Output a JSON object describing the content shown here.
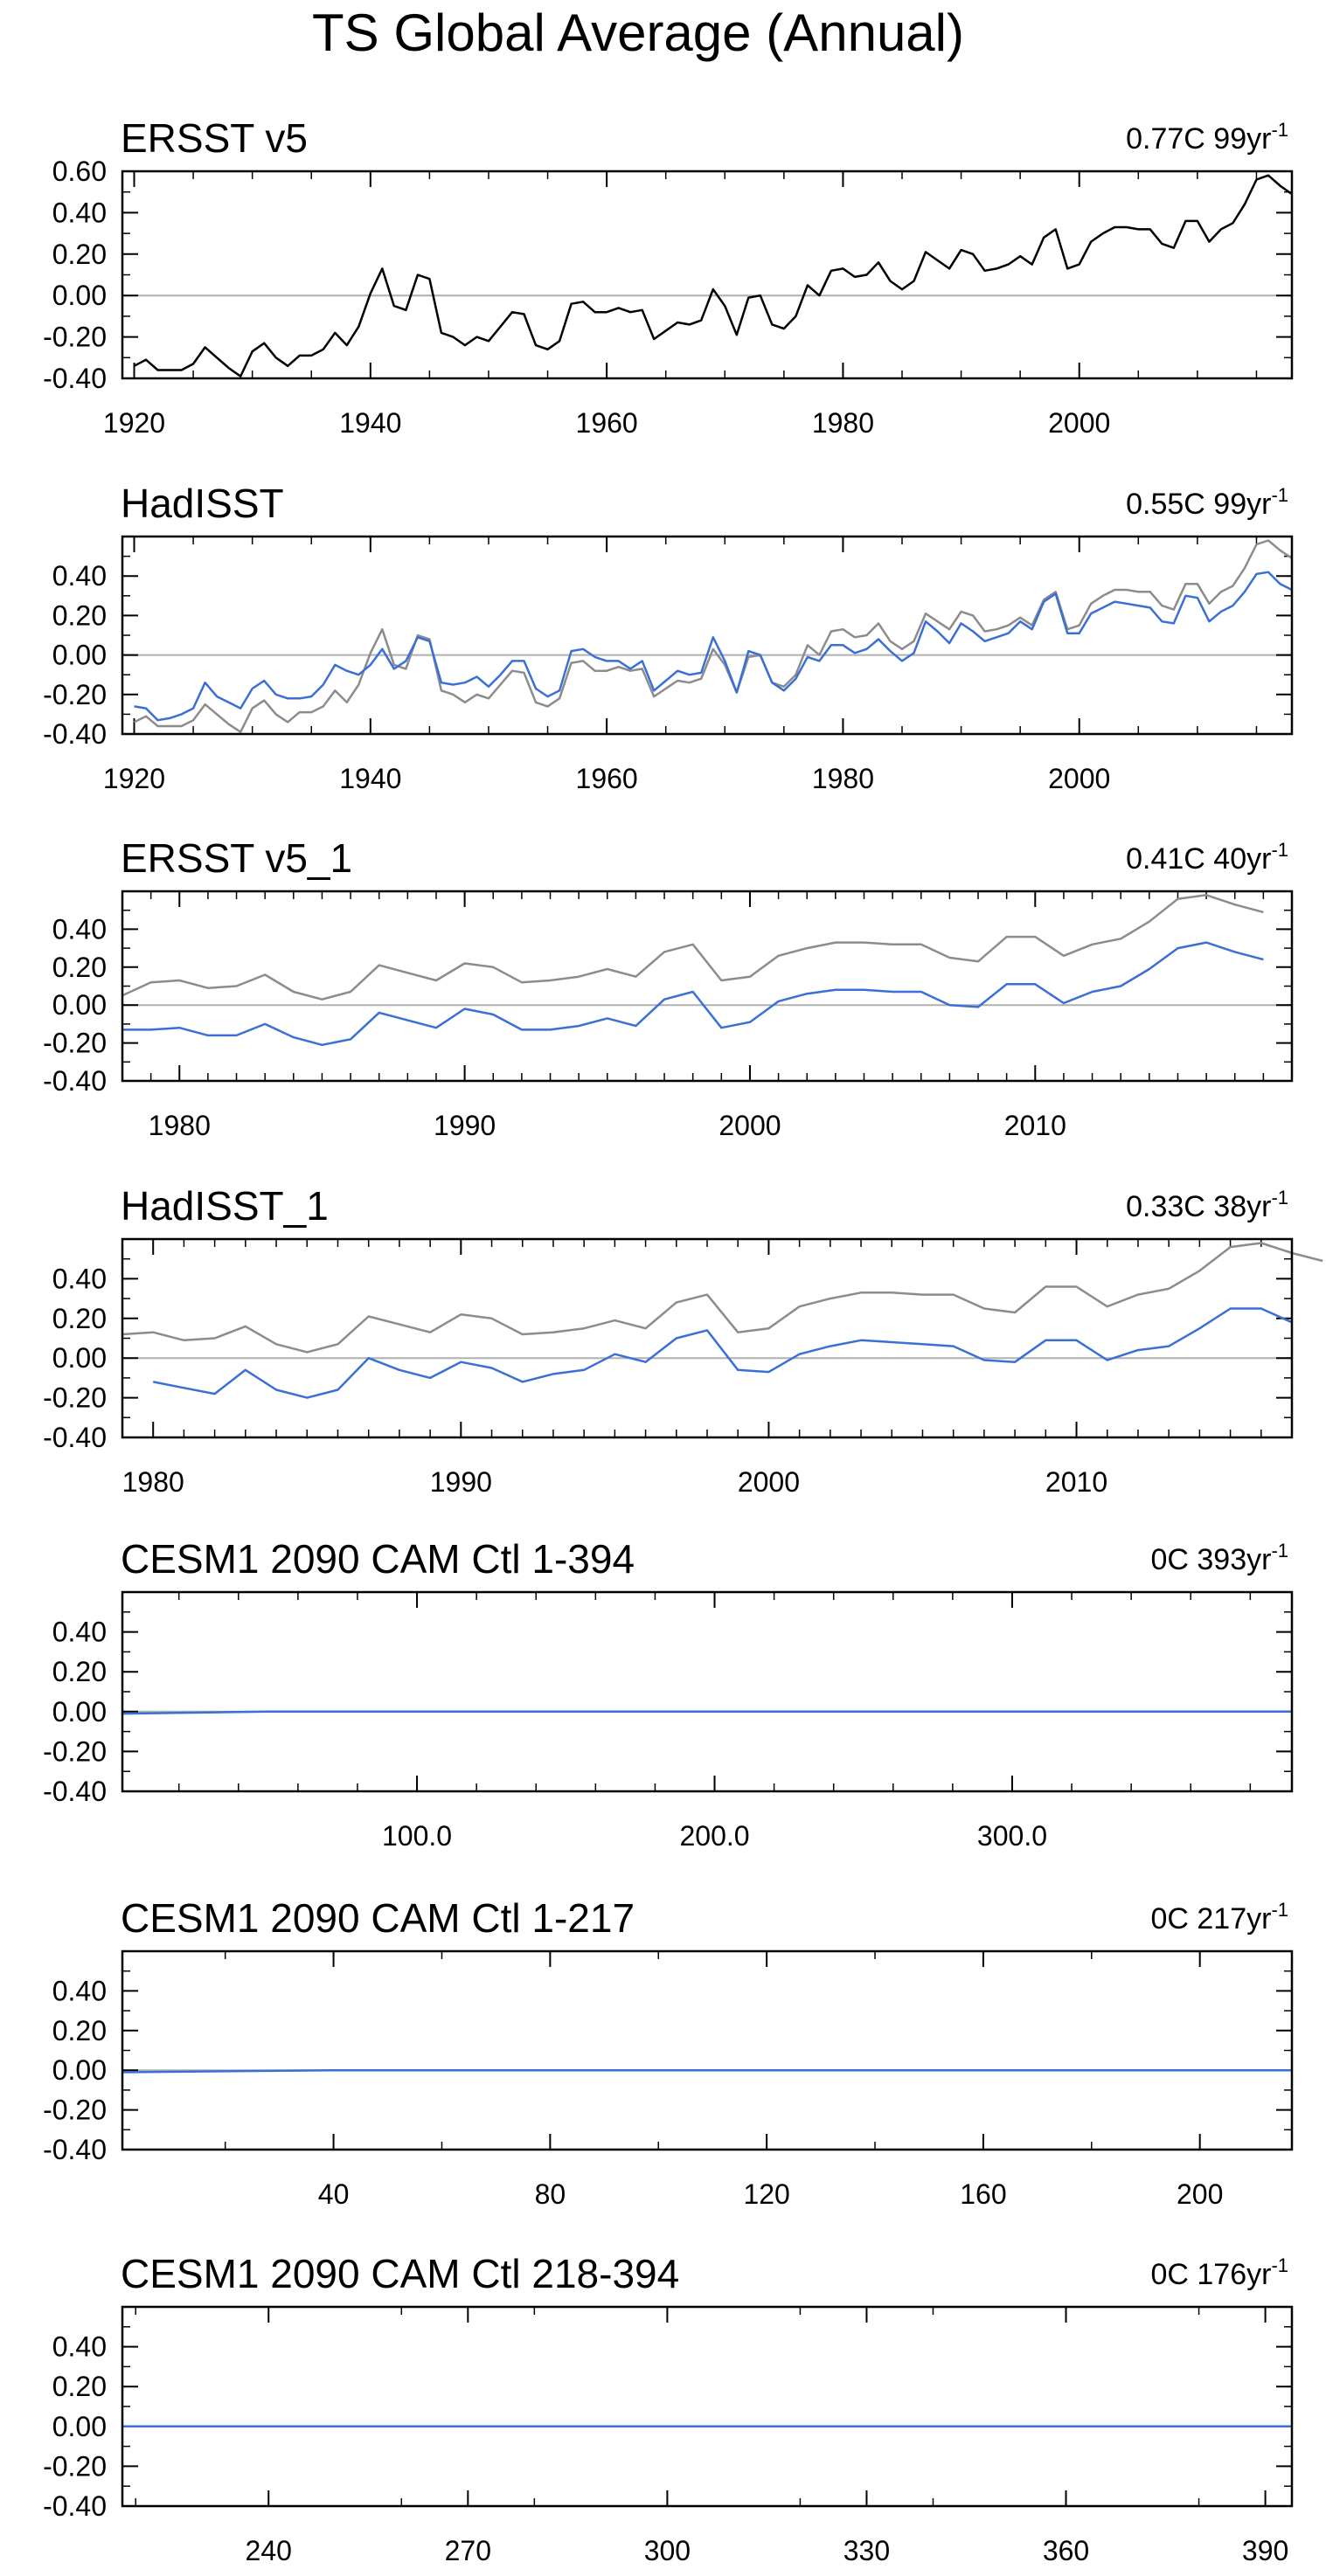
{
  "title": "TS Global Average (Annual)",
  "colors": {
    "obs": "#000000",
    "obs_ref": "#8c8c8c",
    "model": "#3a6fd6",
    "zero": "#b0b0b0",
    "axis": "#000000"
  },
  "chart_data": [
    {
      "type": "line",
      "title": "ERSST v5",
      "stat_value": "0.77C 99yr",
      "stat_sup": "-1",
      "xlim": [
        1919,
        2018
      ],
      "ylim": [
        -0.4,
        0.6
      ],
      "xticks": [
        1920,
        1940,
        1960,
        1980,
        2000
      ],
      "xtick_labels": [
        "1920",
        "1940",
        "1960",
        "1980",
        "2000"
      ],
      "yticks": [
        -0.4,
        -0.2,
        0,
        0.2,
        0.4,
        0.6
      ],
      "ytick_labels": [
        "-0.40",
        "-0.20",
        "0.00",
        "0.20",
        "0.40",
        "0.60"
      ],
      "grid": false,
      "series": [
        {
          "color_role": "obs",
          "x0": 1920,
          "values": [
            -0.34,
            -0.31,
            -0.36,
            -0.36,
            -0.36,
            -0.33,
            -0.25,
            -0.3,
            -0.35,
            -0.39,
            -0.27,
            -0.23,
            -0.3,
            -0.34,
            -0.29,
            -0.29,
            -0.26,
            -0.18,
            -0.24,
            -0.15,
            0.01,
            0.13,
            -0.05,
            -0.07,
            0.1,
            0.08,
            -0.18,
            -0.2,
            -0.24,
            -0.2,
            -0.22,
            -0.15,
            -0.08,
            -0.09,
            -0.24,
            -0.26,
            -0.22,
            -0.04,
            -0.03,
            -0.08,
            -0.08,
            -0.06,
            -0.08,
            -0.07,
            -0.21,
            -0.17,
            -0.13,
            -0.14,
            -0.12,
            0.03,
            -0.05,
            -0.19,
            -0.01,
            0.0,
            -0.14,
            -0.16,
            -0.1,
            0.05,
            0.0,
            0.12,
            0.13,
            0.09,
            0.1,
            0.16,
            0.07,
            0.03,
            0.07,
            0.21,
            0.17,
            0.13,
            0.22,
            0.2,
            0.12,
            0.13,
            0.15,
            0.19,
            0.15,
            0.28,
            0.32,
            0.13,
            0.15,
            0.26,
            0.3,
            0.33,
            0.33,
            0.32,
            0.32,
            0.25,
            0.23,
            0.36,
            0.36,
            0.26,
            0.32,
            0.35,
            0.44,
            0.56,
            0.58,
            0.53,
            0.49
          ]
        }
      ]
    },
    {
      "type": "line",
      "title": "HadISST",
      "stat_value": "0.55C 99yr",
      "stat_sup": "-1",
      "xlim": [
        1919,
        2018
      ],
      "ylim": [
        -0.4,
        0.6
      ],
      "xticks": [
        1920,
        1940,
        1960,
        1980,
        2000
      ],
      "xtick_labels": [
        "1920",
        "1940",
        "1960",
        "1980",
        "2000"
      ],
      "yticks": [
        -0.4,
        -0.2,
        0,
        0.2,
        0.4
      ],
      "ytick_labels": [
        "-0.40",
        "-0.20",
        "0.00",
        "0.20",
        "0.40"
      ],
      "grid": false,
      "series": [
        {
          "color_role": "obs_ref",
          "x0": 1920,
          "values": [
            -0.34,
            -0.31,
            -0.36,
            -0.36,
            -0.36,
            -0.33,
            -0.25,
            -0.3,
            -0.35,
            -0.39,
            -0.27,
            -0.23,
            -0.3,
            -0.34,
            -0.29,
            -0.29,
            -0.26,
            -0.18,
            -0.24,
            -0.15,
            0.01,
            0.13,
            -0.05,
            -0.07,
            0.1,
            0.08,
            -0.18,
            -0.2,
            -0.24,
            -0.2,
            -0.22,
            -0.15,
            -0.08,
            -0.09,
            -0.24,
            -0.26,
            -0.22,
            -0.04,
            -0.03,
            -0.08,
            -0.08,
            -0.06,
            -0.08,
            -0.07,
            -0.21,
            -0.17,
            -0.13,
            -0.14,
            -0.12,
            0.03,
            -0.05,
            -0.19,
            -0.01,
            0.0,
            -0.14,
            -0.16,
            -0.1,
            0.05,
            0.0,
            0.12,
            0.13,
            0.09,
            0.1,
            0.16,
            0.07,
            0.03,
            0.07,
            0.21,
            0.17,
            0.13,
            0.22,
            0.2,
            0.12,
            0.13,
            0.15,
            0.19,
            0.15,
            0.28,
            0.32,
            0.13,
            0.15,
            0.26,
            0.3,
            0.33,
            0.33,
            0.32,
            0.32,
            0.25,
            0.23,
            0.36,
            0.36,
            0.26,
            0.32,
            0.35,
            0.44,
            0.56,
            0.58,
            0.53,
            0.49
          ]
        },
        {
          "color_role": "model",
          "x0": 1920,
          "values": [
            -0.26,
            -0.27,
            -0.33,
            -0.32,
            -0.3,
            -0.27,
            -0.14,
            -0.21,
            -0.24,
            -0.27,
            -0.17,
            -0.13,
            -0.2,
            -0.22,
            -0.22,
            -0.21,
            -0.15,
            -0.05,
            -0.08,
            -0.1,
            -0.05,
            0.03,
            -0.07,
            -0.03,
            0.09,
            0.07,
            -0.14,
            -0.15,
            -0.14,
            -0.11,
            -0.16,
            -0.1,
            -0.03,
            -0.03,
            -0.17,
            -0.21,
            -0.18,
            0.02,
            0.03,
            -0.01,
            -0.03,
            -0.03,
            -0.07,
            -0.03,
            -0.18,
            -0.13,
            -0.08,
            -0.1,
            -0.09,
            0.09,
            -0.03,
            -0.19,
            0.02,
            0.0,
            -0.14,
            -0.18,
            -0.12,
            -0.01,
            -0.03,
            0.05,
            0.05,
            0.01,
            0.03,
            0.08,
            0.02,
            -0.03,
            0.01,
            0.17,
            0.12,
            0.06,
            0.16,
            0.12,
            0.07,
            0.09,
            0.11,
            0.17,
            0.13,
            0.27,
            0.31,
            0.11,
            0.11,
            0.21,
            0.24,
            0.27,
            0.26,
            0.25,
            0.24,
            0.17,
            0.16,
            0.3,
            0.29,
            0.17,
            0.22,
            0.25,
            0.32,
            0.41,
            0.42,
            0.36,
            0.33
          ]
        }
      ]
    },
    {
      "type": "line",
      "title": "ERSST v5_1",
      "stat_value": "0.41C 40yr",
      "stat_sup": "-1",
      "xlim": [
        1978,
        2019
      ],
      "ylim": [
        -0.4,
        0.6
      ],
      "xticks": [
        1980,
        1990,
        2000,
        2010
      ],
      "xtick_labels": [
        "1980",
        "1990",
        "2000",
        "2010"
      ],
      "yticks": [
        -0.4,
        -0.2,
        0,
        0.2,
        0.4
      ],
      "ytick_labels": [
        "-0.40",
        "-0.20",
        "0.00",
        "0.20",
        "0.40"
      ],
      "grid": false,
      "series": [
        {
          "color_role": "obs_ref",
          "x0": 1978,
          "values": [
            0.05,
            0.12,
            0.13,
            0.09,
            0.1,
            0.16,
            0.07,
            0.03,
            0.07,
            0.21,
            0.17,
            0.13,
            0.22,
            0.2,
            0.12,
            0.13,
            0.15,
            0.19,
            0.15,
            0.28,
            0.32,
            0.13,
            0.15,
            0.26,
            0.3,
            0.33,
            0.33,
            0.32,
            0.32,
            0.25,
            0.23,
            0.36,
            0.36,
            0.26,
            0.32,
            0.35,
            0.44,
            0.56,
            0.58,
            0.53,
            0.49
          ]
        },
        {
          "color_role": "model",
          "x0": 1978,
          "values": [
            -0.13,
            -0.13,
            -0.12,
            -0.16,
            -0.16,
            -0.1,
            -0.17,
            -0.21,
            -0.18,
            -0.04,
            -0.08,
            -0.12,
            -0.02,
            -0.05,
            -0.13,
            -0.13,
            -0.11,
            -0.07,
            -0.11,
            0.03,
            0.07,
            -0.12,
            -0.09,
            0.02,
            0.06,
            0.08,
            0.08,
            0.07,
            0.07,
            0.0,
            -0.01,
            0.11,
            0.11,
            0.01,
            0.07,
            0.1,
            0.19,
            0.3,
            0.33,
            0.28,
            0.24
          ]
        }
      ]
    },
    {
      "type": "line",
      "title": "HadISST_1",
      "stat_value": "0.33C 38yr",
      "stat_sup": "-1",
      "xlim": [
        1979,
        2017
      ],
      "ylim": [
        -0.4,
        0.6
      ],
      "xticks": [
        1980,
        1990,
        2000,
        2010
      ],
      "xtick_labels": [
        "1980",
        "1990",
        "2000",
        "2010"
      ],
      "yticks": [
        -0.4,
        -0.2,
        0,
        0.2,
        0.4
      ],
      "ytick_labels": [
        "-0.40",
        "-0.20",
        "0.00",
        "0.20",
        "0.40"
      ],
      "grid": false,
      "series": [
        {
          "color_role": "obs_ref",
          "x0": 1979,
          "values": [
            0.12,
            0.13,
            0.09,
            0.1,
            0.16,
            0.07,
            0.03,
            0.07,
            0.21,
            0.17,
            0.13,
            0.22,
            0.2,
            0.12,
            0.13,
            0.15,
            0.19,
            0.15,
            0.28,
            0.32,
            0.13,
            0.15,
            0.26,
            0.3,
            0.33,
            0.33,
            0.32,
            0.32,
            0.25,
            0.23,
            0.36,
            0.36,
            0.26,
            0.32,
            0.35,
            0.44,
            0.56,
            0.58,
            0.53,
            0.49
          ]
        },
        {
          "color_role": "model",
          "x0": 1980,
          "values": [
            -0.12,
            -0.15,
            -0.18,
            -0.06,
            -0.16,
            -0.2,
            -0.16,
            0.0,
            -0.06,
            -0.1,
            -0.02,
            -0.05,
            -0.12,
            -0.08,
            -0.06,
            0.02,
            -0.02,
            0.1,
            0.14,
            -0.06,
            -0.07,
            0.02,
            0.06,
            0.09,
            0.08,
            0.07,
            0.06,
            -0.01,
            -0.02,
            0.09,
            0.09,
            -0.01,
            0.04,
            0.06,
            0.15,
            0.25,
            0.25,
            0.18
          ]
        }
      ]
    },
    {
      "type": "line",
      "title": "CESM1 2090 CAM Ctl 1-394",
      "stat_value": "0C 393yr",
      "stat_sup": "-1",
      "xlim": [
        1,
        394
      ],
      "ylim": [
        -0.4,
        0.6
      ],
      "xticks": [
        100,
        200,
        300
      ],
      "xtick_labels": [
        "100.0",
        "200.0",
        "300.0"
      ],
      "yticks": [
        -0.4,
        -0.2,
        0,
        0.2,
        0.4
      ],
      "ytick_labels": [
        "-0.40",
        "-0.20",
        "0.00",
        "0.20",
        "0.40"
      ],
      "grid": false,
      "series": [
        {
          "color_role": "model",
          "x": [
            1,
            50,
            100,
            150,
            200,
            250,
            300,
            350,
            394
          ],
          "values": [
            -0.01,
            0.0,
            0.0,
            0.0,
            0.0,
            0.0,
            0.0,
            0.0,
            0.0
          ]
        }
      ]
    },
    {
      "type": "line",
      "title": "CESM1 2090 CAM Ctl 1-217",
      "stat_value": "0C 217yr",
      "stat_sup": "-1",
      "xlim": [
        1,
        217
      ],
      "ylim": [
        -0.4,
        0.6
      ],
      "xticks": [
        40,
        80,
        120,
        160,
        200
      ],
      "xtick_labels": [
        "40",
        "80",
        "120",
        "160",
        "200"
      ],
      "yticks": [
        -0.4,
        -0.2,
        0,
        0.2,
        0.4
      ],
      "ytick_labels": [
        "-0.40",
        "-0.20",
        "0.00",
        "0.20",
        "0.40"
      ],
      "grid": false,
      "series": [
        {
          "color_role": "model",
          "x": [
            1,
            40,
            80,
            120,
            160,
            200,
            217
          ],
          "values": [
            -0.01,
            0.0,
            0.0,
            0.0,
            0.0,
            0.0,
            0.0
          ]
        }
      ]
    },
    {
      "type": "line",
      "title": "CESM1 2090 CAM Ctl 218-394",
      "stat_value": "0C 176yr",
      "stat_sup": "-1",
      "xlim": [
        218,
        394
      ],
      "ylim": [
        -0.4,
        0.6
      ],
      "xticks": [
        240,
        270,
        300,
        330,
        360,
        390
      ],
      "xtick_labels": [
        "240",
        "270",
        "300",
        "330",
        "360",
        "390"
      ],
      "yticks": [
        -0.4,
        -0.2,
        0,
        0.2,
        0.4
      ],
      "ytick_labels": [
        "-0.40",
        "-0.20",
        "0.00",
        "0.20",
        "0.40"
      ],
      "grid": false,
      "series": [
        {
          "color_role": "model",
          "x": [
            218,
            260,
            300,
            340,
            394
          ],
          "values": [
            0.0,
            0.0,
            0.0,
            0.0,
            0.0
          ]
        }
      ]
    }
  ]
}
